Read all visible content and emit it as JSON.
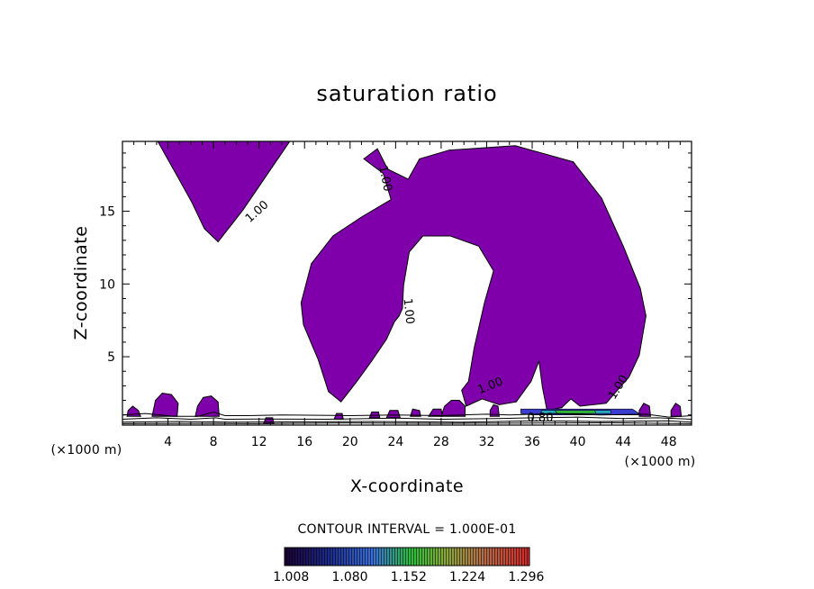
{
  "chart_data": {
    "type": "contour",
    "title": "saturation ratio",
    "xlabel": "X-coordinate",
    "ylabel": "Z-coordinate",
    "x_unit": "(×1000 m)",
    "x_unit_left": "(×1000 m)",
    "xlim": [
      0,
      50
    ],
    "ylim": [
      0.3,
      19.8
    ],
    "x_ticks": [
      4,
      8,
      12,
      16,
      20,
      24,
      28,
      32,
      36,
      40,
      44,
      48
    ],
    "y_ticks": [
      5,
      10,
      15
    ],
    "contour_interval_text": "CONTOUR INTERVAL = 1.000E-01",
    "contour_line_labels": [
      "1.00",
      "1.00",
      "1.00",
      "1.00",
      "1.00",
      "0.80"
    ],
    "colorbar_ticks": [
      "1.008",
      "1.080",
      "1.152",
      "1.224",
      "1.296"
    ],
    "colorbar_range": [
      1.0,
      1.3
    ],
    "colors": {
      "supersaturated_fill": "#7f00aa",
      "contour_line": "#000000",
      "colorbar_low": "#1a0033",
      "colorbar_mid": "#2dbd3a",
      "colorbar_high": "#d0282a"
    },
    "regions": [
      {
        "name": "upper-left-lobe",
        "points": [
          [
            3.1,
            19.8
          ],
          [
            8.4,
            19.8
          ],
          [
            14.7,
            19.8
          ],
          [
            12.6,
            17.4
          ],
          [
            10.6,
            15.1
          ],
          [
            8.4,
            12.9
          ],
          [
            7.2,
            13.8
          ],
          [
            6.1,
            15.6
          ],
          [
            4.9,
            17.3
          ],
          [
            3.1,
            19.8
          ]
        ]
      },
      {
        "name": "central-right-lobe",
        "points": [
          [
            21.2,
            18.6
          ],
          [
            22.4,
            19.3
          ],
          [
            23.3,
            17.9
          ],
          [
            25.1,
            17.2
          ],
          [
            26.1,
            18.6
          ],
          [
            28.7,
            19.2
          ],
          [
            34.5,
            19.5
          ],
          [
            39.6,
            18.4
          ],
          [
            42.1,
            15.9
          ],
          [
            44.0,
            12.6
          ],
          [
            45.5,
            9.7
          ],
          [
            46.0,
            7.8
          ],
          [
            45.4,
            5.1
          ],
          [
            44.5,
            3.6
          ],
          [
            43.5,
            2.7
          ],
          [
            42.5,
            1.8
          ],
          [
            40.2,
            1.6
          ],
          [
            39.4,
            2.1
          ],
          [
            38.6,
            1.5
          ],
          [
            37.3,
            1.3
          ],
          [
            36.9,
            2.9
          ],
          [
            36.6,
            4.7
          ],
          [
            35.9,
            3.3
          ],
          [
            34.6,
            1.9
          ],
          [
            33.1,
            1.7
          ],
          [
            31.6,
            2.1
          ],
          [
            30.2,
            1.6
          ],
          [
            29.8,
            2.7
          ],
          [
            30.4,
            3.3
          ],
          [
            30.9,
            5.6
          ],
          [
            31.8,
            8.7
          ],
          [
            32.6,
            10.9
          ],
          [
            31.3,
            12.6
          ],
          [
            28.8,
            13.3
          ],
          [
            26.4,
            13.3
          ],
          [
            25.2,
            12.2
          ],
          [
            24.7,
            9.9
          ],
          [
            24.6,
            8.3
          ],
          [
            24.3,
            7.8
          ],
          [
            23.9,
            7.4
          ],
          [
            23.2,
            6.2
          ],
          [
            21.9,
            4.7
          ],
          [
            20.6,
            3.3
          ],
          [
            19.2,
            1.9
          ],
          [
            18.1,
            2.6
          ],
          [
            17.2,
            4.8
          ],
          [
            15.9,
            7.2
          ],
          [
            15.7,
            8.7
          ],
          [
            16.6,
            11.4
          ],
          [
            18.5,
            13.3
          ],
          [
            21.0,
            14.6
          ],
          [
            23.6,
            15.8
          ],
          [
            22.9,
            17.6
          ],
          [
            21.2,
            18.6
          ]
        ]
      },
      {
        "name": "blob-1",
        "points": [
          [
            0.4,
            0.9
          ],
          [
            1.6,
            0.9
          ],
          [
            1.4,
            1.3
          ],
          [
            0.9,
            1.6
          ],
          [
            0.5,
            1.3
          ]
        ]
      },
      {
        "name": "blob-2",
        "points": [
          [
            2.6,
            0.9
          ],
          [
            4.8,
            0.9
          ],
          [
            4.9,
            1.8
          ],
          [
            4.3,
            2.4
          ],
          [
            3.5,
            2.5
          ],
          [
            2.9,
            2.0
          ]
        ]
      },
      {
        "name": "blob-3",
        "points": [
          [
            6.4,
            0.9
          ],
          [
            8.5,
            0.9
          ],
          [
            8.4,
            1.9
          ],
          [
            7.8,
            2.3
          ],
          [
            7.1,
            2.2
          ],
          [
            6.6,
            1.6
          ]
        ]
      },
      {
        "name": "blob-4",
        "points": [
          [
            12.4,
            0.4
          ],
          [
            13.3,
            0.4
          ],
          [
            13.2,
            0.8
          ],
          [
            12.6,
            0.8
          ]
        ]
      },
      {
        "name": "blob-5",
        "points": [
          [
            18.6,
            0.7
          ],
          [
            19.4,
            0.7
          ],
          [
            19.3,
            1.1
          ],
          [
            18.8,
            1.1
          ]
        ]
      },
      {
        "name": "blob-6",
        "points": [
          [
            21.7,
            0.8
          ],
          [
            22.6,
            0.8
          ],
          [
            22.5,
            1.2
          ],
          [
            21.9,
            1.2
          ]
        ]
      },
      {
        "name": "blob-7",
        "points": [
          [
            23.2,
            0.8
          ],
          [
            24.4,
            0.8
          ],
          [
            24.2,
            1.3
          ],
          [
            23.5,
            1.3
          ]
        ]
      },
      {
        "name": "blob-8",
        "points": [
          [
            25.3,
            0.9
          ],
          [
            26.2,
            0.9
          ],
          [
            26.1,
            1.3
          ],
          [
            25.5,
            1.4
          ]
        ]
      },
      {
        "name": "blob-9",
        "points": [
          [
            26.9,
            0.9
          ],
          [
            28.1,
            0.9
          ],
          [
            28.0,
            1.4
          ],
          [
            27.3,
            1.4
          ]
        ]
      },
      {
        "name": "blob-10",
        "points": [
          [
            28.0,
            0.9
          ],
          [
            30.1,
            0.9
          ],
          [
            30.1,
            1.6
          ],
          [
            29.6,
            2.0
          ],
          [
            28.9,
            2.0
          ],
          [
            28.3,
            1.6
          ]
        ]
      },
      {
        "name": "blob-11",
        "points": [
          [
            32.3,
            0.9
          ],
          [
            33.1,
            0.9
          ],
          [
            33.0,
            1.6
          ],
          [
            32.6,
            1.7
          ],
          [
            32.3,
            1.3
          ]
        ]
      },
      {
        "name": "blob-12",
        "points": [
          [
            45.4,
            0.9
          ],
          [
            46.4,
            0.9
          ],
          [
            46.3,
            1.6
          ],
          [
            45.8,
            1.8
          ],
          [
            45.4,
            1.3
          ]
        ]
      },
      {
        "name": "blob-13",
        "points": [
          [
            48.2,
            0.9
          ],
          [
            49.1,
            0.9
          ],
          [
            49.0,
            1.6
          ],
          [
            48.6,
            1.8
          ],
          [
            48.2,
            1.3
          ]
        ]
      }
    ],
    "streaks": [
      {
        "name": "blue-streak",
        "color": "#3a3dcf",
        "points": [
          [
            35.0,
            1.4
          ],
          [
            44.8,
            1.4
          ],
          [
            45.6,
            1.0
          ],
          [
            36.0,
            1.0
          ],
          [
            35.0,
            1.1
          ]
        ]
      },
      {
        "name": "cyan-streak",
        "color": "#28b6c8",
        "points": [
          [
            36.8,
            1.3
          ],
          [
            42.9,
            1.3
          ],
          [
            42.9,
            1.1
          ],
          [
            36.8,
            1.1
          ]
        ]
      },
      {
        "name": "green-streak",
        "color": "#33c23a",
        "points": [
          [
            38.0,
            1.3
          ],
          [
            41.5,
            1.3
          ],
          [
            41.6,
            1.1
          ],
          [
            38.2,
            1.1
          ]
        ]
      }
    ],
    "contour_lines": [
      [
        [
          0.0,
          1.0
        ],
        [
          2.0,
          1.1
        ],
        [
          4.5,
          0.9
        ],
        [
          6.6,
          0.9
        ],
        [
          8.0,
          1.2
        ],
        [
          9.0,
          0.95
        ],
        [
          11.0,
          0.95
        ],
        [
          14.0,
          1.0
        ],
        [
          20.0,
          0.95
        ],
        [
          24.0,
          1.0
        ],
        [
          28.0,
          0.95
        ],
        [
          32.0,
          1.05
        ],
        [
          34.0,
          1.0
        ],
        [
          38.0,
          1.1
        ],
        [
          42.0,
          1.0
        ],
        [
          46.0,
          1.05
        ],
        [
          48.0,
          0.85
        ],
        [
          50.0,
          0.95
        ]
      ],
      [
        [
          0.0,
          0.7
        ],
        [
          3.0,
          0.8
        ],
        [
          6.0,
          0.7
        ],
        [
          8.2,
          0.8
        ],
        [
          9.0,
          0.7
        ],
        [
          12.0,
          0.72
        ],
        [
          18.0,
          0.7
        ],
        [
          24.0,
          0.78
        ],
        [
          28.0,
          0.7
        ],
        [
          33.0,
          0.75
        ],
        [
          36.0,
          0.8
        ],
        [
          40.0,
          0.85
        ],
        [
          44.0,
          0.75
        ],
        [
          47.0,
          0.8
        ],
        [
          50.0,
          0.7
        ]
      ],
      [
        [
          0.0,
          0.5
        ],
        [
          5.0,
          0.55
        ],
        [
          10.0,
          0.5
        ],
        [
          16.0,
          0.52
        ],
        [
          22.0,
          0.55
        ],
        [
          30.0,
          0.5
        ],
        [
          36.0,
          0.6
        ],
        [
          42.0,
          0.55
        ],
        [
          48.0,
          0.6
        ],
        [
          50.0,
          0.5
        ]
      ],
      [
        [
          0.0,
          0.4
        ],
        [
          6.0,
          0.42
        ],
        [
          12.0,
          0.4
        ],
        [
          20.0,
          0.45
        ],
        [
          28.0,
          0.42
        ],
        [
          35.0,
          0.44
        ],
        [
          43.0,
          0.46
        ],
        [
          50.0,
          0.4
        ]
      ]
    ]
  }
}
